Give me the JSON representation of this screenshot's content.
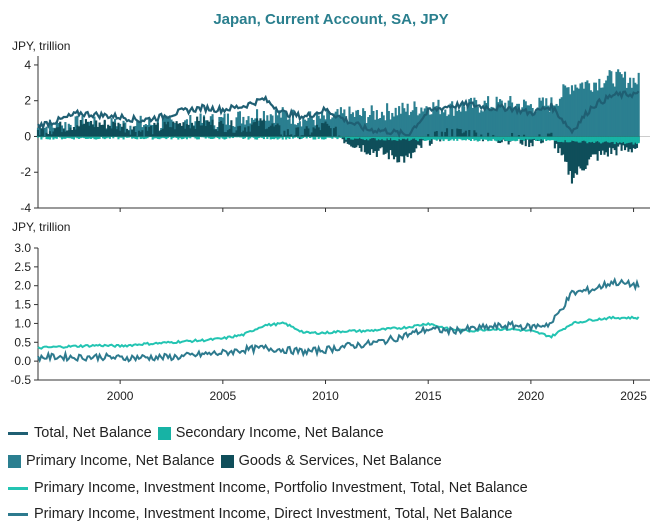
{
  "title": "Japan, Current Account, SA, JPY",
  "colors": {
    "total": "#1f5f73",
    "secondary": "#17b3a5",
    "primary": "#2b7f90",
    "goods": "#0f4e5a",
    "portfolio": "#23c4b2",
    "direct": "#2d7a8e"
  },
  "chart_data": [
    {
      "type": "area",
      "ylabel": "JPY, trillion",
      "ylim": [
        -4,
        4.5
      ],
      "yticks": [
        -4,
        -2,
        0,
        2,
        4
      ],
      "xlim": [
        1996,
        2025.8
      ],
      "xticks": [
        2000,
        2005,
        2010,
        2015,
        2020,
        2025
      ],
      "grid": false,
      "series": [
        {
          "name": "Total, Net Balance",
          "kind": "line",
          "color_key": "total",
          "x": [
            1996,
            1997,
            1998,
            1999,
            2000,
            2001,
            2002,
            2003,
            2004,
            2005,
            2006,
            2007,
            2008,
            2009,
            2010,
            2011,
            2012,
            2013,
            2014,
            2015,
            2016,
            2017,
            2018,
            2019,
            2020,
            2021,
            2022,
            2023,
            2024,
            2025.3
          ],
          "values": [
            0.6,
            0.9,
            1.3,
            1.2,
            1.1,
            0.9,
            1.1,
            1.4,
            1.6,
            1.5,
            1.7,
            2.1,
            1.3,
            1.1,
            1.5,
            0.9,
            0.4,
            0.3,
            0.1,
            1.4,
            1.7,
            1.8,
            1.6,
            1.6,
            1.3,
            1.7,
            0.3,
            1.7,
            2.3,
            2.4
          ]
        },
        {
          "name": "Secondary Income, Net Balance",
          "kind": "area",
          "color_key": "secondary",
          "x": [
            1996,
            2000,
            2005,
            2010,
            2015,
            2020,
            2025.3
          ],
          "values": [
            -0.1,
            -0.1,
            -0.1,
            -0.1,
            -0.2,
            -0.2,
            -0.4
          ]
        },
        {
          "name": "Primary Income, Net Balance",
          "kind": "area",
          "color_key": "primary",
          "x": [
            1996,
            1997,
            1998,
            1999,
            2000,
            2001,
            2002,
            2003,
            2004,
            2005,
            2006,
            2007,
            2008,
            2009,
            2010,
            2011,
            2012,
            2013,
            2014,
            2015,
            2016,
            2017,
            2018,
            2019,
            2020,
            2021,
            2022,
            2023,
            2024,
            2025.3
          ],
          "values": [
            0.5,
            0.6,
            0.7,
            0.6,
            0.6,
            0.7,
            0.7,
            0.7,
            0.8,
            0.9,
            1.1,
            1.3,
            1.2,
            1.0,
            1.0,
            1.2,
            1.2,
            1.4,
            1.5,
            1.7,
            1.6,
            1.7,
            1.8,
            1.8,
            1.7,
            1.8,
            2.9,
            3.0,
            3.3,
            3.1
          ]
        },
        {
          "name": "Goods & Services, Net Balance",
          "kind": "area",
          "color_key": "goods",
          "x": [
            1996,
            1997,
            1998,
            1999,
            2000,
            2001,
            2002,
            2003,
            2004,
            2005,
            2006,
            2007,
            2008,
            2009,
            2010,
            2011,
            2012,
            2013,
            2014,
            2015,
            2016,
            2017,
            2018,
            2019,
            2020,
            2021,
            2022,
            2023,
            2024,
            2025.3
          ],
          "values": [
            0.3,
            0.5,
            0.7,
            0.7,
            0.6,
            0.3,
            0.5,
            0.7,
            0.8,
            0.6,
            0.5,
            0.8,
            0.2,
            0.2,
            0.6,
            -0.2,
            -0.7,
            -1.0,
            -1.3,
            -0.2,
            0.2,
            0.2,
            -0.1,
            -0.1,
            -0.3,
            0.0,
            -2.3,
            -1.2,
            -0.8,
            -0.6
          ]
        }
      ]
    },
    {
      "type": "line",
      "ylabel": "JPY, trillion",
      "ylim": [
        -0.5,
        3.0
      ],
      "yticks": [
        "-0.5",
        "0.0",
        "0.5",
        "1.0",
        "1.5",
        "2.0",
        "2.5",
        "3.0"
      ],
      "xlim": [
        1996,
        2025.8
      ],
      "xticks": [
        2000,
        2005,
        2010,
        2015,
        2020,
        2025
      ],
      "grid": false,
      "series": [
        {
          "name": "Primary Income, Investment Income, Portfolio Investment, Total, Net Balance",
          "color_key": "portfolio",
          "x": [
            1996,
            1997,
            1998,
            1999,
            2000,
            2001,
            2002,
            2003,
            2004,
            2005,
            2006,
            2007,
            2008,
            2009,
            2010,
            2011,
            2012,
            2013,
            2014,
            2015,
            2016,
            2017,
            2018,
            2019,
            2020,
            2021,
            2022,
            2023,
            2024,
            2025.3
          ],
          "values": [
            0.35,
            0.38,
            0.4,
            0.42,
            0.4,
            0.45,
            0.48,
            0.52,
            0.55,
            0.6,
            0.7,
            0.95,
            1.0,
            0.75,
            0.75,
            0.8,
            0.8,
            0.85,
            0.9,
            1.0,
            0.85,
            0.8,
            0.85,
            0.85,
            0.8,
            0.65,
            1.0,
            1.1,
            1.15,
            1.15
          ]
        },
        {
          "name": "Primary Income, Investment Income, Direct Investment, Total, Net Balance",
          "color_key": "direct",
          "x": [
            1996,
            1997,
            1998,
            1999,
            2000,
            2001,
            2002,
            2003,
            2004,
            2005,
            2006,
            2007,
            2008,
            2009,
            2010,
            2011,
            2012,
            2013,
            2014,
            2015,
            2016,
            2017,
            2018,
            2019,
            2020,
            2021,
            2022,
            2023,
            2024,
            2025.3
          ],
          "values": [
            0.1,
            0.12,
            0.1,
            0.12,
            0.08,
            0.1,
            0.1,
            0.12,
            0.18,
            0.22,
            0.3,
            0.35,
            0.3,
            0.25,
            0.3,
            0.4,
            0.45,
            0.55,
            0.7,
            0.85,
            0.8,
            0.85,
            0.9,
            0.95,
            0.9,
            1.0,
            1.8,
            1.9,
            2.1,
            2.0
          ]
        }
      ]
    }
  ],
  "legend": {
    "row1": [
      "Total, Net Balance",
      "Secondary Income, Net Balance"
    ],
    "row2": [
      "Primary Income, Net Balance",
      "Goods & Services, Net Balance"
    ],
    "row3": "Primary Income, Investment Income, Portfolio Investment, Total, Net Balance",
    "row4": "Primary Income, Investment Income, Direct Investment, Total, Net Balance"
  }
}
